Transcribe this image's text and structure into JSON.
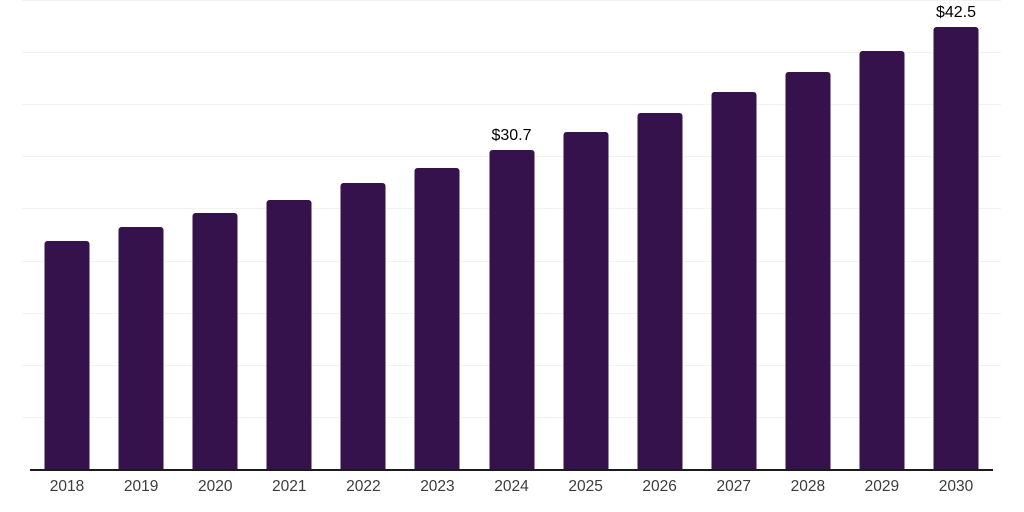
{
  "chart_data": {
    "type": "bar",
    "title": "",
    "xlabel": "",
    "ylabel": "",
    "categories": [
      "2018",
      "2019",
      "2020",
      "2021",
      "2022",
      "2023",
      "2024",
      "2025",
      "2026",
      "2027",
      "2028",
      "2029",
      "2030"
    ],
    "values": [
      22.0,
      23.3,
      24.7,
      25.9,
      27.5,
      29.0,
      30.7,
      32.4,
      34.3,
      36.3,
      38.2,
      40.2,
      42.5
    ],
    "data_labels": {
      "2024": "$30.7",
      "2030": "$42.5"
    },
    "ylim": [
      0,
      45.1
    ],
    "gridline_step": 5,
    "grid": "horizontal",
    "legend_position": "none",
    "bar_color": "#35124C",
    "grid_color": "#f2f2f2",
    "axis_line_color": "#1b1b1b",
    "tick_label_color": "#3c3c3c",
    "value_label_color": "#000000",
    "background_color": "#ffffff"
  }
}
